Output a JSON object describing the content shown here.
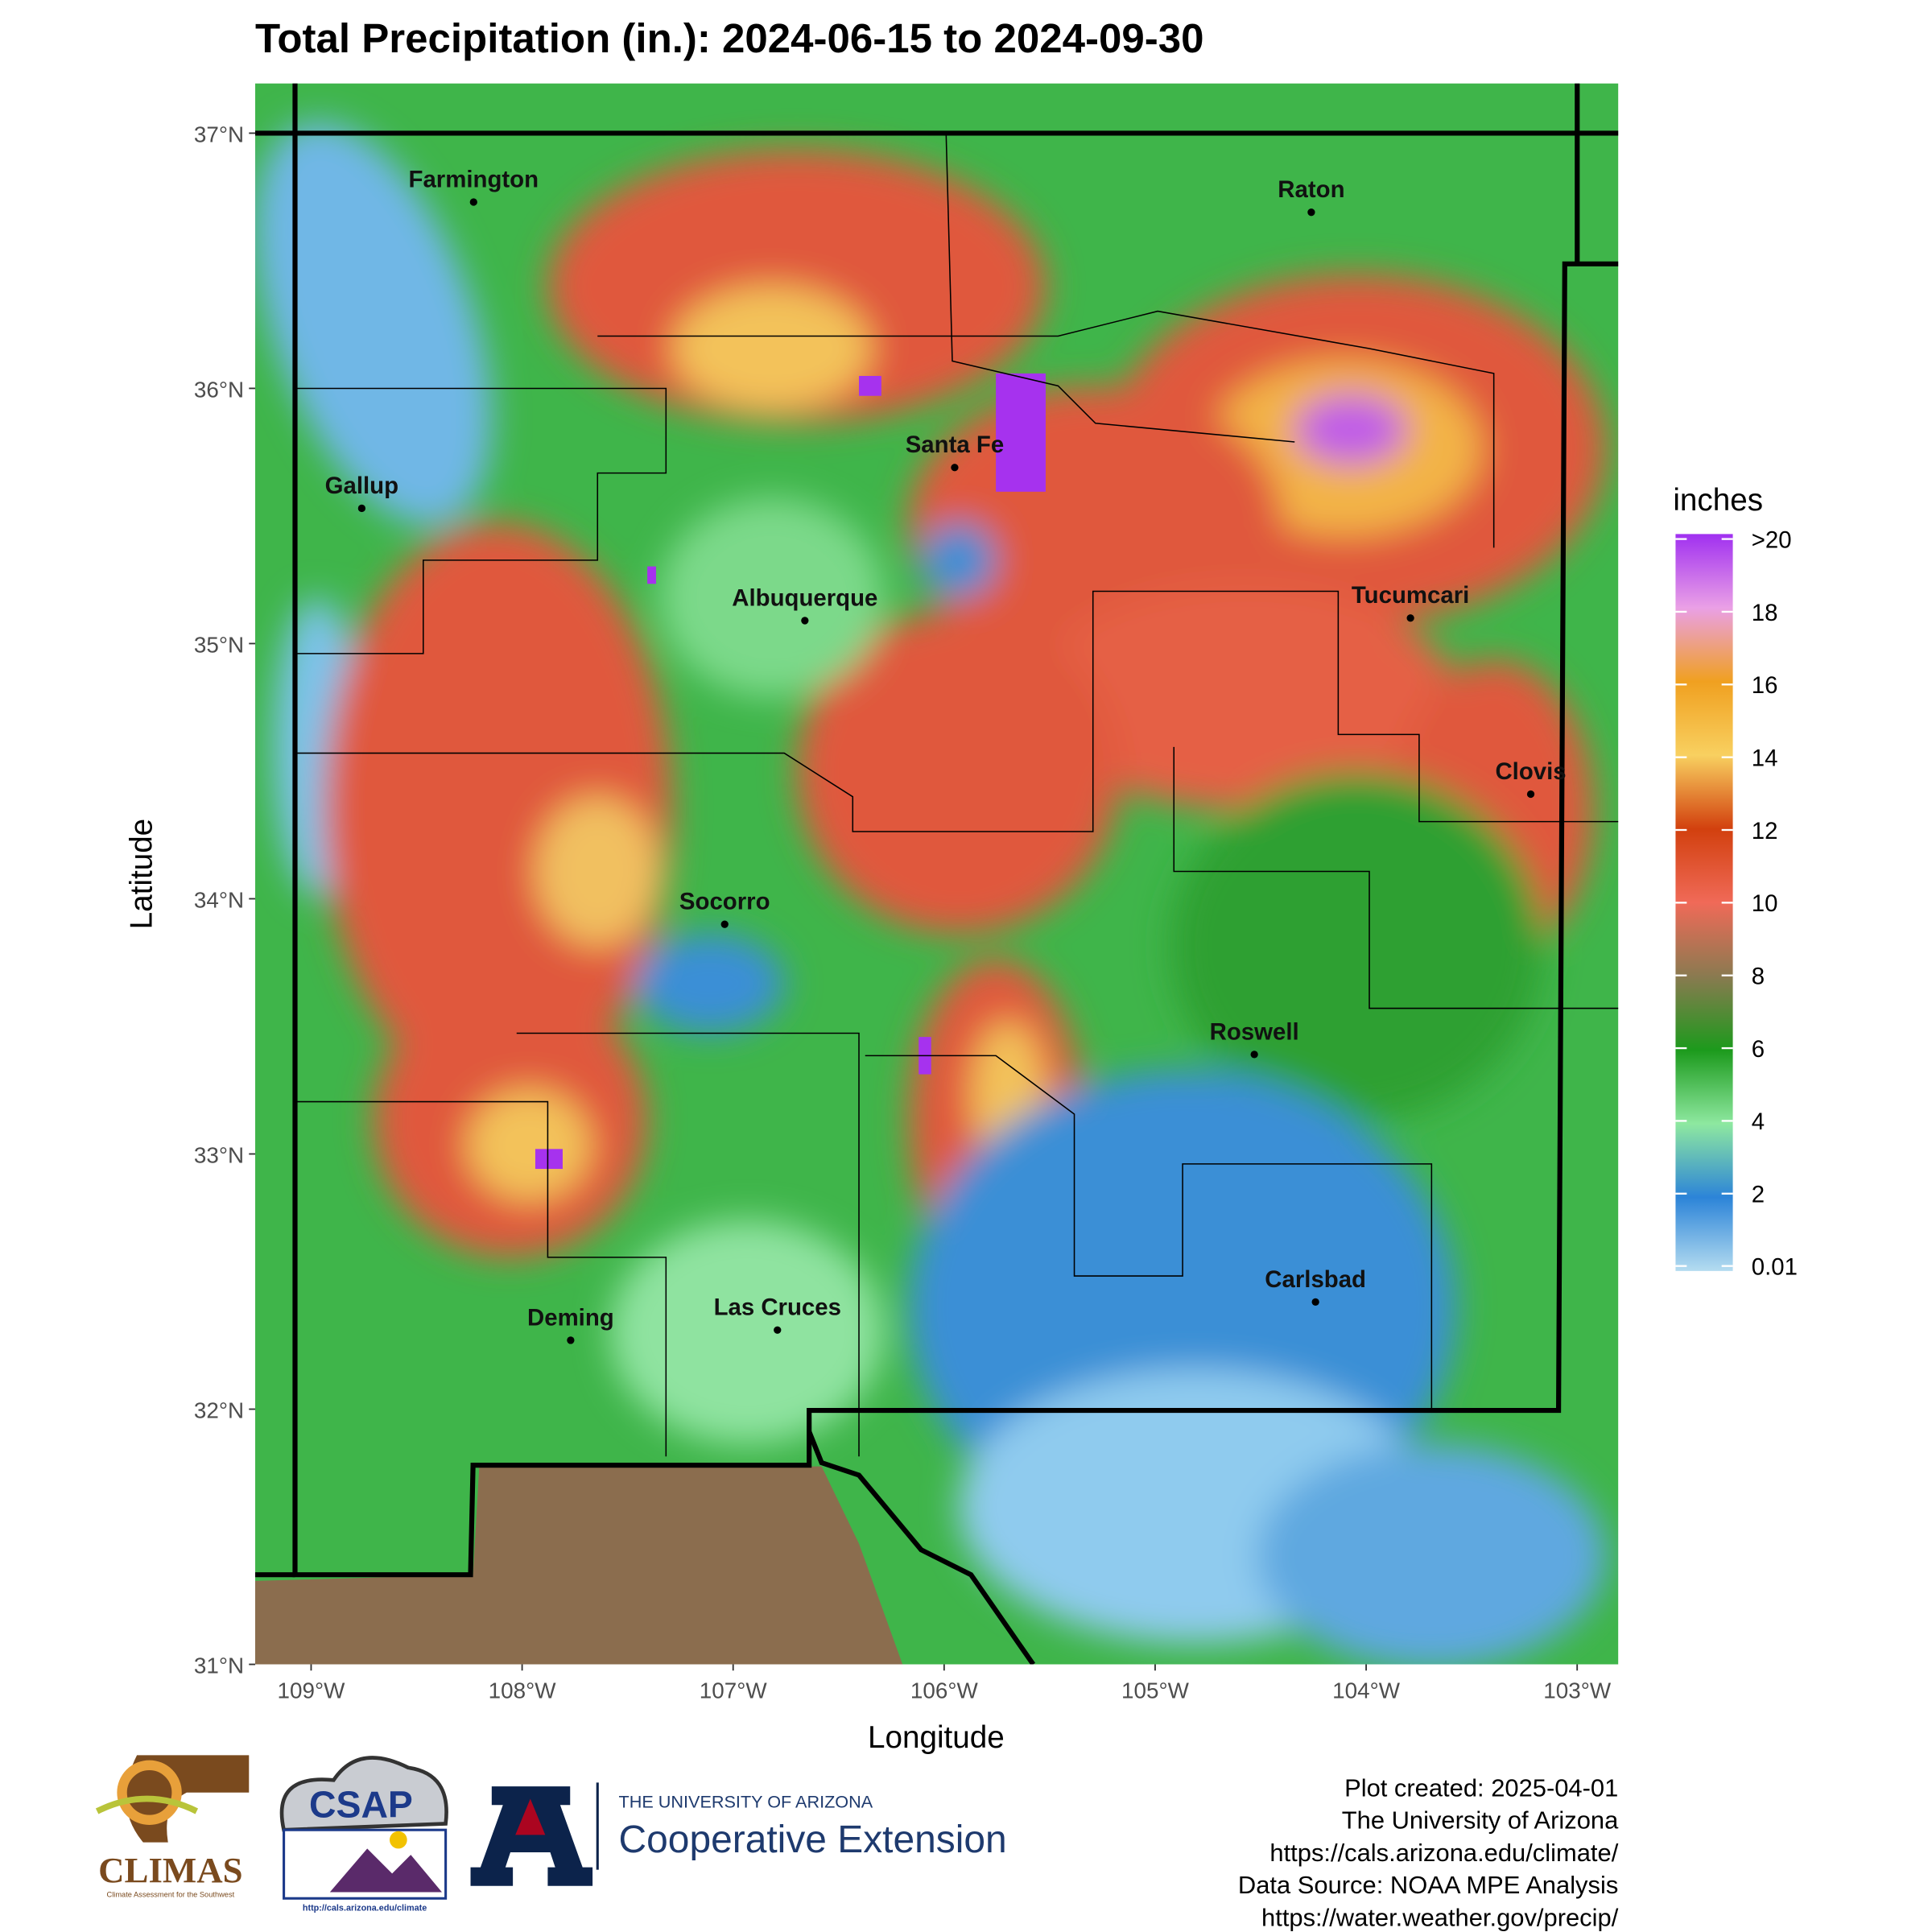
{
  "chart_data": {
    "type": "map",
    "title": "Total Precipitation (in.): 2024-06-15 to 2024-09-30",
    "x_label": "Longitude",
    "y_label": "Latitude",
    "xlim": [
      -109.265,
      -102.805
    ],
    "ylim": [
      31,
      37.195
    ],
    "xticks": [
      {
        "value": -109,
        "label": "109°W"
      },
      {
        "value": -108,
        "label": "108°W"
      },
      {
        "value": -107,
        "label": "107°W"
      },
      {
        "value": -106,
        "label": "106°W"
      },
      {
        "value": -105,
        "label": "105°W"
      },
      {
        "value": -104,
        "label": "104°W"
      },
      {
        "value": -103,
        "label": "103°W"
      }
    ],
    "yticks": [
      {
        "value": 31,
        "label": "31°N"
      },
      {
        "value": 32,
        "label": "32°N"
      },
      {
        "value": 33,
        "label": "33°N"
      },
      {
        "value": 34,
        "label": "34°N"
      },
      {
        "value": 35,
        "label": "35°N"
      },
      {
        "value": 36,
        "label": "36°N"
      },
      {
        "value": 37,
        "label": "37°N"
      }
    ],
    "cities": [
      {
        "name": "Farmington",
        "lon": -108.23,
        "lat": 36.73
      },
      {
        "name": "Gallup",
        "lon": -108.76,
        "lat": 35.53
      },
      {
        "name": "Santa Fe",
        "lon": -105.95,
        "lat": 35.69
      },
      {
        "name": "Albuquerque",
        "lon": -106.66,
        "lat": 35.09
      },
      {
        "name": "Raton",
        "lon": -104.26,
        "lat": 36.69
      },
      {
        "name": "Tucumcari",
        "lon": -103.79,
        "lat": 35.1
      },
      {
        "name": "Clovis",
        "lon": -103.22,
        "lat": 34.41
      },
      {
        "name": "Socorro",
        "lon": -107.04,
        "lat": 33.9
      },
      {
        "name": "Roswell",
        "lon": -104.53,
        "lat": 33.39
      },
      {
        "name": "Carlsbad",
        "lon": -104.24,
        "lat": 32.42
      },
      {
        "name": "Deming",
        "lon": -107.77,
        "lat": 32.27
      },
      {
        "name": "Las Cruces",
        "lon": -106.79,
        "lat": 32.31
      }
    ],
    "legend": {
      "title": "inches",
      "clim": [
        0.01,
        20
      ],
      "ticks": [
        0.01,
        2,
        4,
        6,
        8,
        10,
        12,
        14,
        16,
        18,
        {
          "value": 20,
          "label": ">20"
        }
      ],
      "colors": [
        "#b4dcf0",
        "#2c84d8",
        "#8ee8a0",
        "#1c9a1c",
        "#8a7a50",
        "#f06a58",
        "#d2400e",
        "#f8d060",
        "#f0a020",
        "#eaa0e6",
        "#a030f0"
      ]
    }
  },
  "footer": {
    "lines": [
      "Plot created: 2025-04-01",
      "The University of Arizona",
      "https://cals.arizona.edu/climate/",
      "Data Source: NOAA MPE Analysis",
      "https://water.weather.gov/precip/"
    ]
  },
  "logos": {
    "climas": "CLIMAS",
    "climas_tag": "Climate Assessment for the Southwest",
    "csap": "CSAP",
    "csap_url": "http://cals.arizona.edu/climate",
    "ua_line1": "THE UNIVERSITY OF ARIZONA",
    "ua_line2": "Cooperative Extension"
  }
}
